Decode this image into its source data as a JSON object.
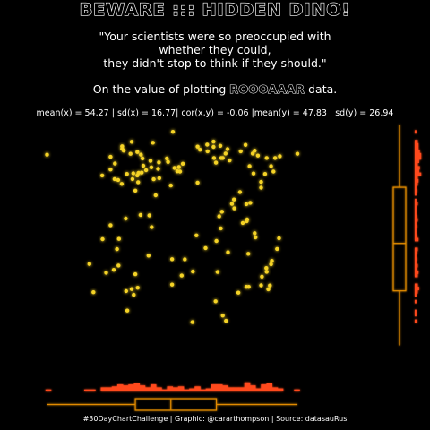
{
  "title": "BEWARE ::: HIDDEN DINO!",
  "quote": {
    "line1": "\"Your scientists were so preoccupied with",
    "line2": "whether they could,",
    "line3": "they didn't stop to think if they should.\""
  },
  "subtitle": {
    "prefix": "On the value of plotting ",
    "emphasis": "ROOOAAAR",
    "suffix": " data."
  },
  "stats": "mean(x) = 54.27 | sd(x) = 16.77| cor(x,y) = -0.06 |mean(y) = 47.83 | sd(y) = 26.94",
  "caption": "#30DayChartChallenge | Graphic: @cararthompson | Source: datasauRus",
  "colors": {
    "background": "#000000",
    "points": "#f5d327",
    "marginal": "#ff4a1f",
    "boxplot": "#e08a00",
    "text": "#ffffff"
  },
  "chart_data": {
    "type": "scatter",
    "title": "BEWARE ::: HIDDEN DINO!",
    "xlabel": "",
    "ylabel": "",
    "xlim": [
      15,
      98
    ],
    "ylim": [
      -3,
      100
    ],
    "x": [
      22.3,
      41.5,
      41.1,
      70.8,
      85.0,
      48.8,
      46.2,
      52.3,
      48.2,
      46.4,
      50.1,
      43.7,
      45.1,
      44.9,
      46.0,
      47.1,
      39.2,
      49.0,
      50.3,
      48.4,
      43.5,
      44.9,
      45.8,
      53.8,
      55.3,
      54.9,
      54.2,
      56.3,
      55.6,
      62.5,
      60.0,
      60.6,
      62.4,
      64.0,
      64.0,
      65.7,
      66.3,
      64.1,
      65.9,
      64.6,
      68.0,
      67.5,
      67.0,
      72.0,
      73.0,
      74.3,
      73.8,
      75.1,
      77.3,
      80.6,
      78.4,
      79.0,
      79.4,
      76.9,
      75.9,
      74.0,
      36.1,
      38.2,
      38.2,
      39.3,
      42.3,
      41.1,
      43.9,
      43.2,
      41.0,
      40.1,
      47.9,
      48.5,
      50.4,
      53.3,
      45.2,
      44.4,
      42.0,
      45.7,
      49.5,
      52.6,
      60.0,
      65.4,
      68.6,
      66.1,
      65.8,
      64.7,
      65.0,
      64.5,
      70.6,
      75.9,
      72.4,
      72.3,
      71.3,
      69.2,
      72.2,
      73.2,
      69.1,
      67.6,
      74.3,
      78.6,
      72.2,
      78.1,
      77.3,
      77.2,
      79.9,
      80.4,
      75.9,
      59.7,
      62.0,
      72.7,
      74.5,
      32.9,
      33.9,
      37.1,
      40.2,
      39.0,
      42.4,
      44.0,
      45.0,
      43.5,
      58.8,
      56.8,
      47.7,
      53.6,
      53.6,
      56.0,
      36.2,
      38.2,
      39.8,
      40.3,
      42.1,
      44.4,
      58.7,
      67.1,
      66.3,
      77.7,
      78.4,
      76.1,
      72.8,
      70.2
    ],
    "y": [
      86.0,
      87.8,
      89.8,
      87.5,
      86.4,
      91.4,
      84.3,
      84.3,
      83.2,
      81.0,
      79.6,
      75.0,
      73.6,
      76.6,
      77.9,
      79.0,
      75.0,
      74.9,
      82.5,
      80.3,
      91.8,
      87.2,
      86.0,
      96.3,
      80.4,
      78.5,
      80.0,
      81.9,
      78.4,
      87.5,
      89.6,
      88.2,
      90.5,
      91.9,
      89.5,
      90.0,
      84.5,
      84.5,
      84.5,
      82.4,
      83.4,
      88.5,
      86.5,
      90.4,
      80.8,
      87.8,
      86.5,
      85.6,
      84.5,
      85.3,
      80.8,
      78.4,
      84.5,
      77.3,
      73.7,
      77.5,
      76.6,
      79.3,
      85.0,
      82.0,
      77.3,
      88.6,
      77.6,
      86.4,
      72.8,
      74.6,
      58.6,
      53.3,
      75.4,
      72.1,
      77.8,
      69.8,
      57.2,
      58.8,
      67.7,
      82.7,
      73.4,
      58.2,
      63.8,
      60.3,
      52.8,
      47.1,
      33.1,
      19.9,
      69.1,
      71.1,
      56.8,
      56.0,
      55.2,
      61.8,
      63.7,
      64.3,
      65.8,
      42.0,
      50.6,
      38.1,
      26.4,
      27.0,
      33.2,
      34.9,
      43.5,
      48.3,
      27.1,
      49.6,
      43.9,
      41.3,
      48.7,
      36.7,
      24.0,
      32.8,
      36.0,
      34.1,
      15.7,
      22.8,
      26.0,
      25.4,
      33.3,
      38.8,
      40.5,
      27.4,
      38.9,
      31.5,
      47.9,
      54.2,
      43.4,
      48.0,
      24.5,
      32.1,
      10.5,
      11.1,
      13.5,
      25.3,
      36.6,
      31.0,
      26.4,
      23.8
    ],
    "stats": {
      "mean_x": 54.27,
      "sd_x": 16.77,
      "cor_xy": -0.06,
      "mean_y": 47.83,
      "sd_y": 26.94
    },
    "marginal_x": {
      "type": "rug-histogram-and-boxplot",
      "orientation": "horizontal",
      "quartiles": [
        44.4,
        53.3,
        64.7
      ],
      "whiskers": [
        22.3,
        85.0
      ]
    },
    "marginal_y": {
      "type": "rug-histogram-and-boxplot",
      "orientation": "vertical",
      "quartiles": [
        24.6,
        46.0,
        71.3
      ],
      "whiskers": [
        0.0,
        99.6
      ]
    }
  }
}
